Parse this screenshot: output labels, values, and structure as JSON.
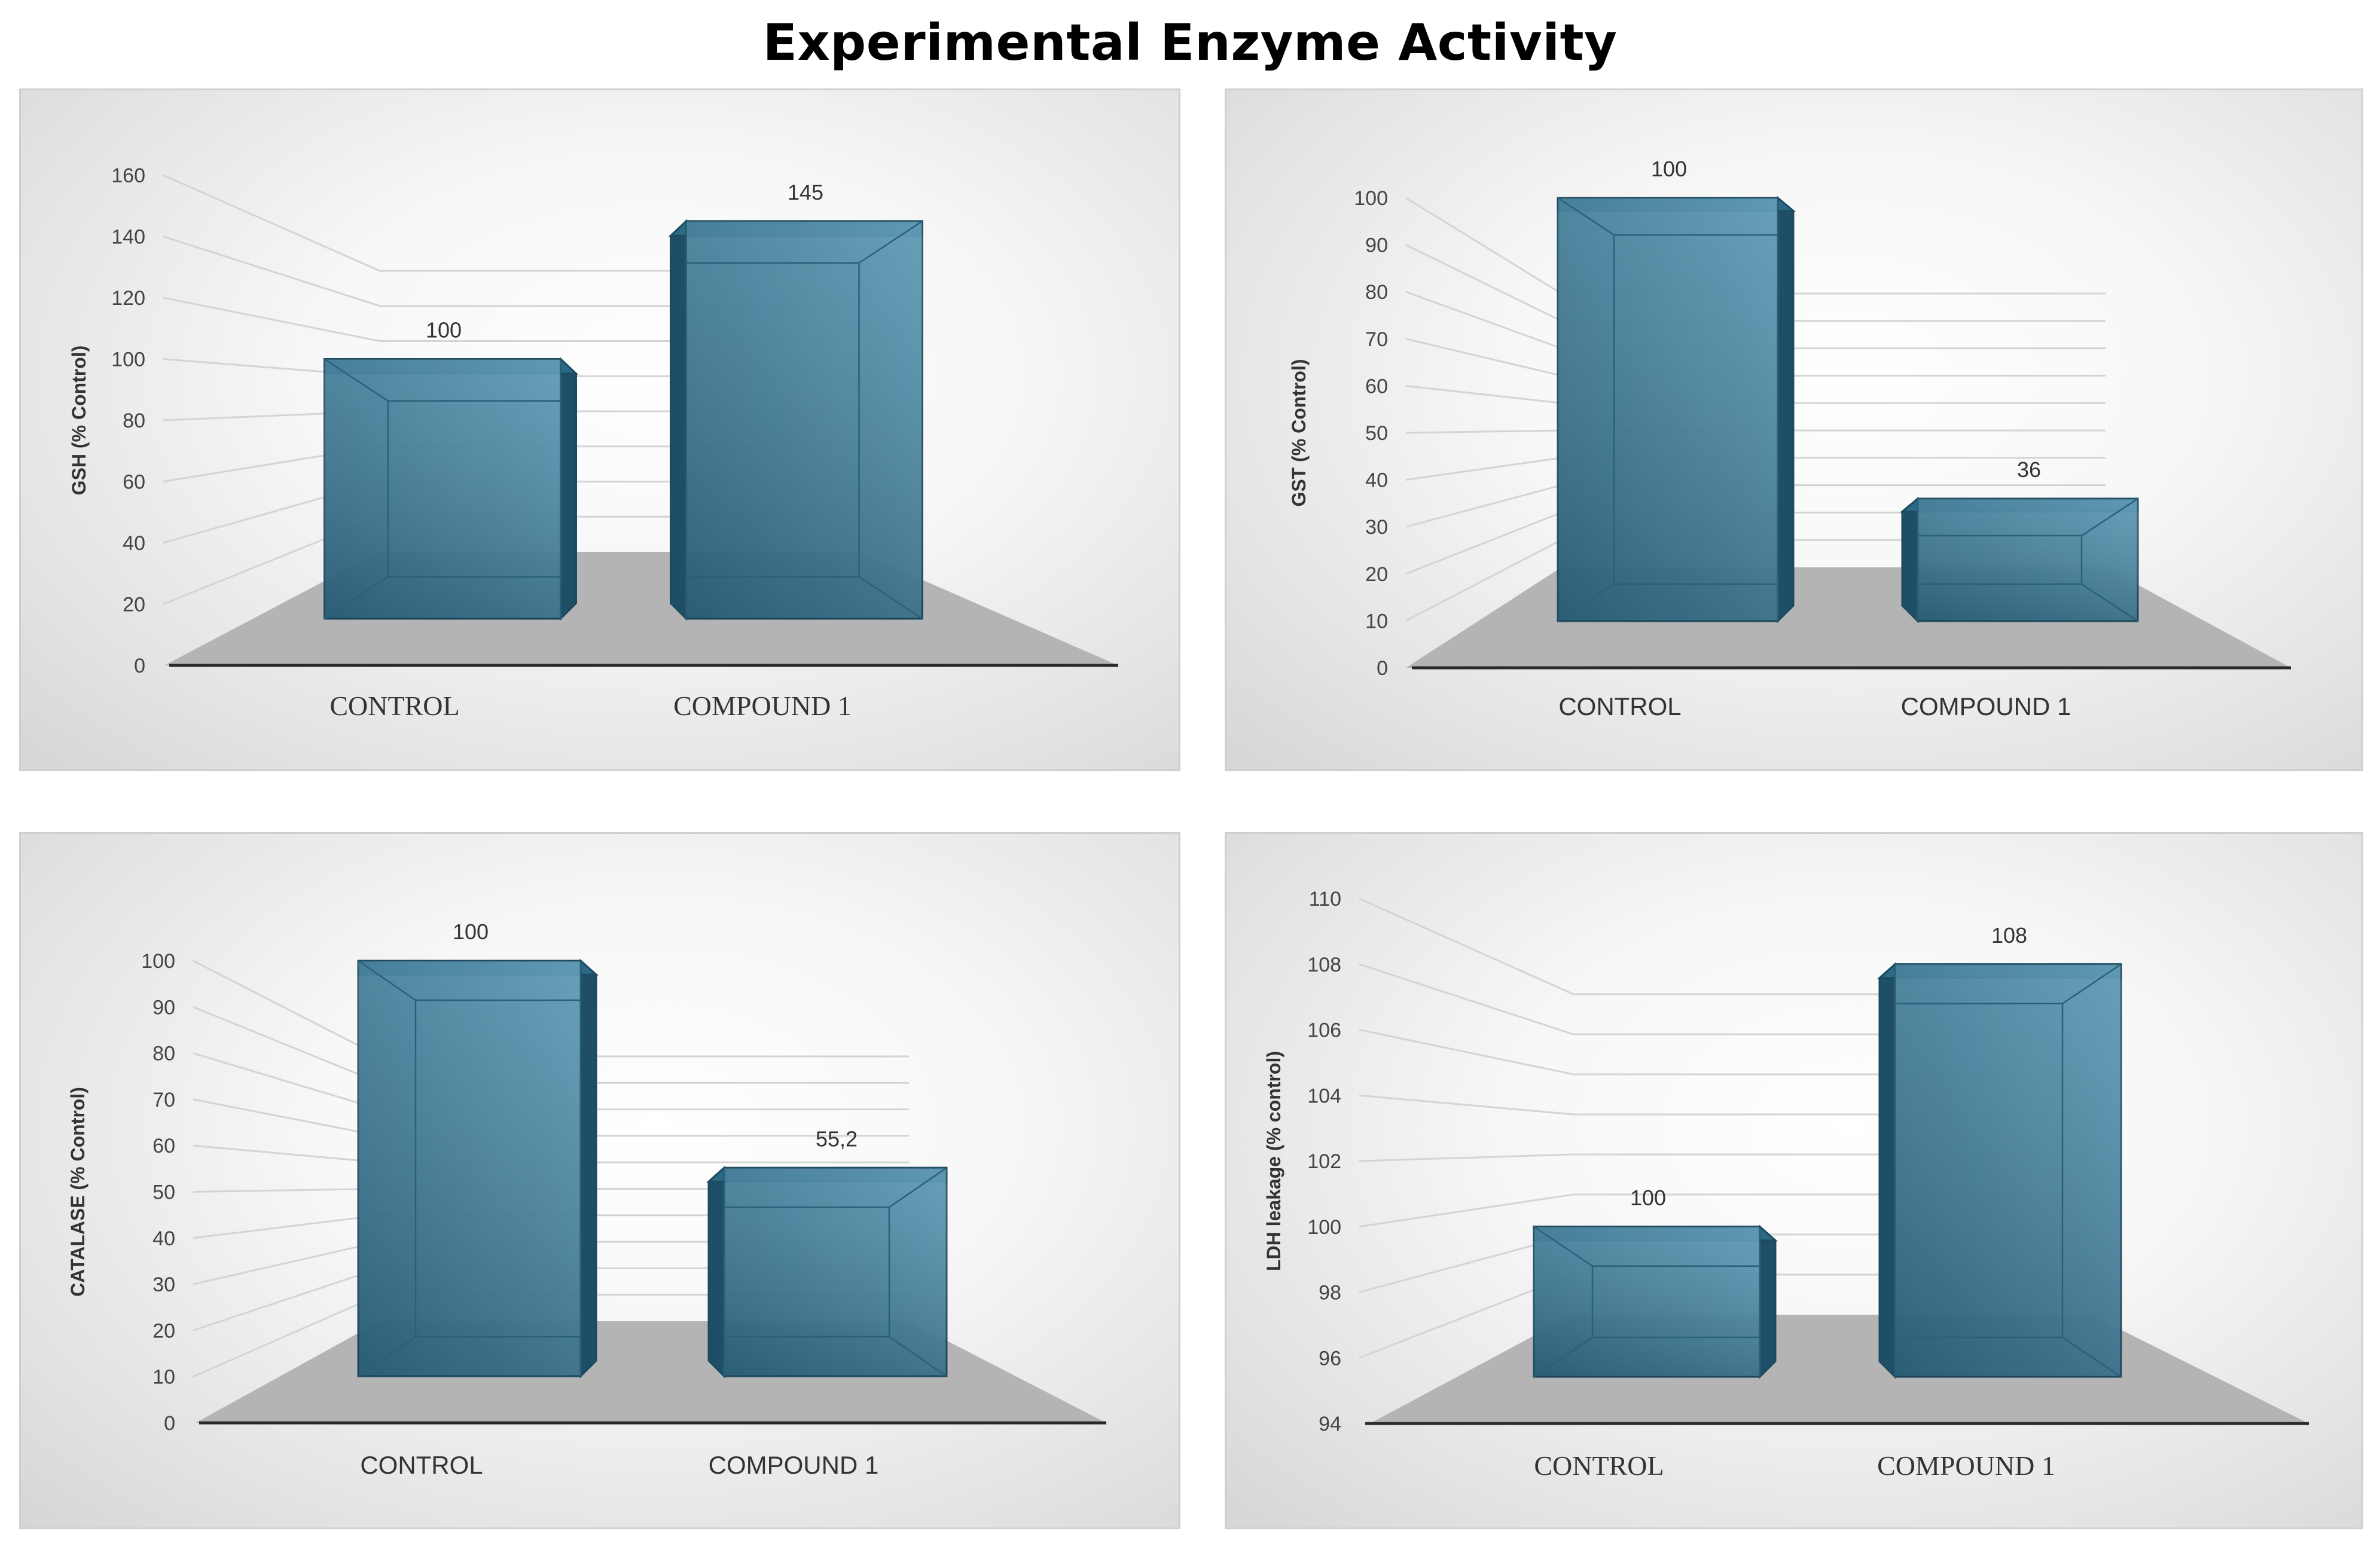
{
  "figure_title": "Experimental Enzyme Activity",
  "colors": {
    "bar_front": "#3d7e9c",
    "bar_side": "#1f4f67",
    "bar_top": "#2c6985",
    "bar_edge": "#1c4a60",
    "floor": "#b4b4b4",
    "axis": "#2a2a2a",
    "grid": "#d4d4d4"
  },
  "chart_data": [
    {
      "type": "bar",
      "title": "",
      "ylabel": "GSH  (% Control)",
      "xlabel": "",
      "categories": [
        "CONTROL",
        "COMPOUND 1"
      ],
      "values": [
        100,
        145
      ],
      "data_labels": [
        "100",
        "145"
      ],
      "ylim": [
        0,
        160
      ],
      "yticks": [
        "0",
        "20",
        "40",
        "60",
        "80",
        "100",
        "120",
        "140",
        "160"
      ],
      "category_font": "serif",
      "grid": true
    },
    {
      "type": "bar",
      "title": "",
      "ylabel": "GST (% Control)",
      "xlabel": "",
      "categories": [
        "CONTROL",
        "COMPOUND 1"
      ],
      "values": [
        100,
        36
      ],
      "data_labels": [
        "100",
        "36"
      ],
      "ylim": [
        0,
        100
      ],
      "yticks": [
        "0",
        "10",
        "20",
        "30",
        "40",
        "50",
        "60",
        "70",
        "80",
        "90",
        "100"
      ],
      "category_font": "sans",
      "grid": true
    },
    {
      "type": "bar",
      "title": "",
      "ylabel": "CATALASE (% Control)",
      "xlabel": "",
      "categories": [
        "CONTROL",
        "COMPOUND 1"
      ],
      "values": [
        100,
        55.2
      ],
      "data_labels": [
        "100",
        "55,2"
      ],
      "ylim": [
        0,
        100
      ],
      "yticks": [
        "0",
        "10",
        "20",
        "30",
        "40",
        "50",
        "60",
        "70",
        "80",
        "90",
        "100"
      ],
      "category_font": "sans",
      "grid": true
    },
    {
      "type": "bar",
      "title": "",
      "ylabel": "LDH leakage (% control)",
      "xlabel": "",
      "categories": [
        "CONTROL",
        "COMPOUND 1"
      ],
      "values": [
        100,
        108
      ],
      "data_labels": [
        "100",
        "108"
      ],
      "ylim": [
        94,
        110
      ],
      "yticks": [
        "94",
        "96",
        "98",
        "100",
        "102",
        "104",
        "106",
        "108",
        "110"
      ],
      "category_font": "serif",
      "grid": true
    }
  ]
}
